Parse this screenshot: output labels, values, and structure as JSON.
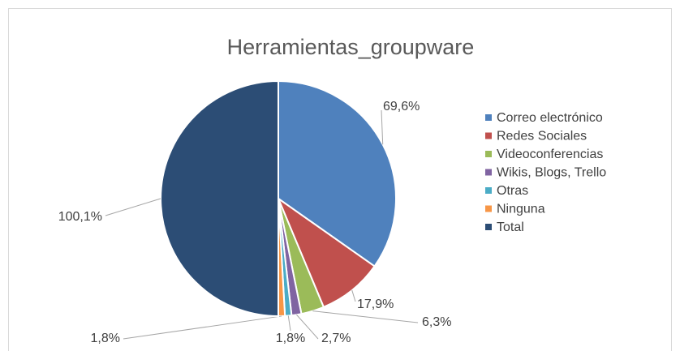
{
  "chart_data": {
    "type": "pie",
    "title": "Herramientas_groupware",
    "categories": [
      "Correo electrónico",
      "Redes Sociales",
      "Videoconferencias",
      "Wikis, Blogs, Trello",
      "Otras",
      "Ninguna",
      "Total"
    ],
    "values": [
      69.6,
      17.9,
      6.3,
      2.7,
      1.8,
      1.8,
      100.1
    ],
    "value_labels": [
      "69,6%",
      "17,9%",
      "6,3%",
      "2,7%",
      "1,8%",
      "1,8%",
      "100,1%"
    ],
    "colors": [
      "#4f81bd",
      "#c0504d",
      "#9bbb59",
      "#8064a2",
      "#4bacc6",
      "#f79646",
      "#2c4d75"
    ],
    "legend": "right"
  }
}
